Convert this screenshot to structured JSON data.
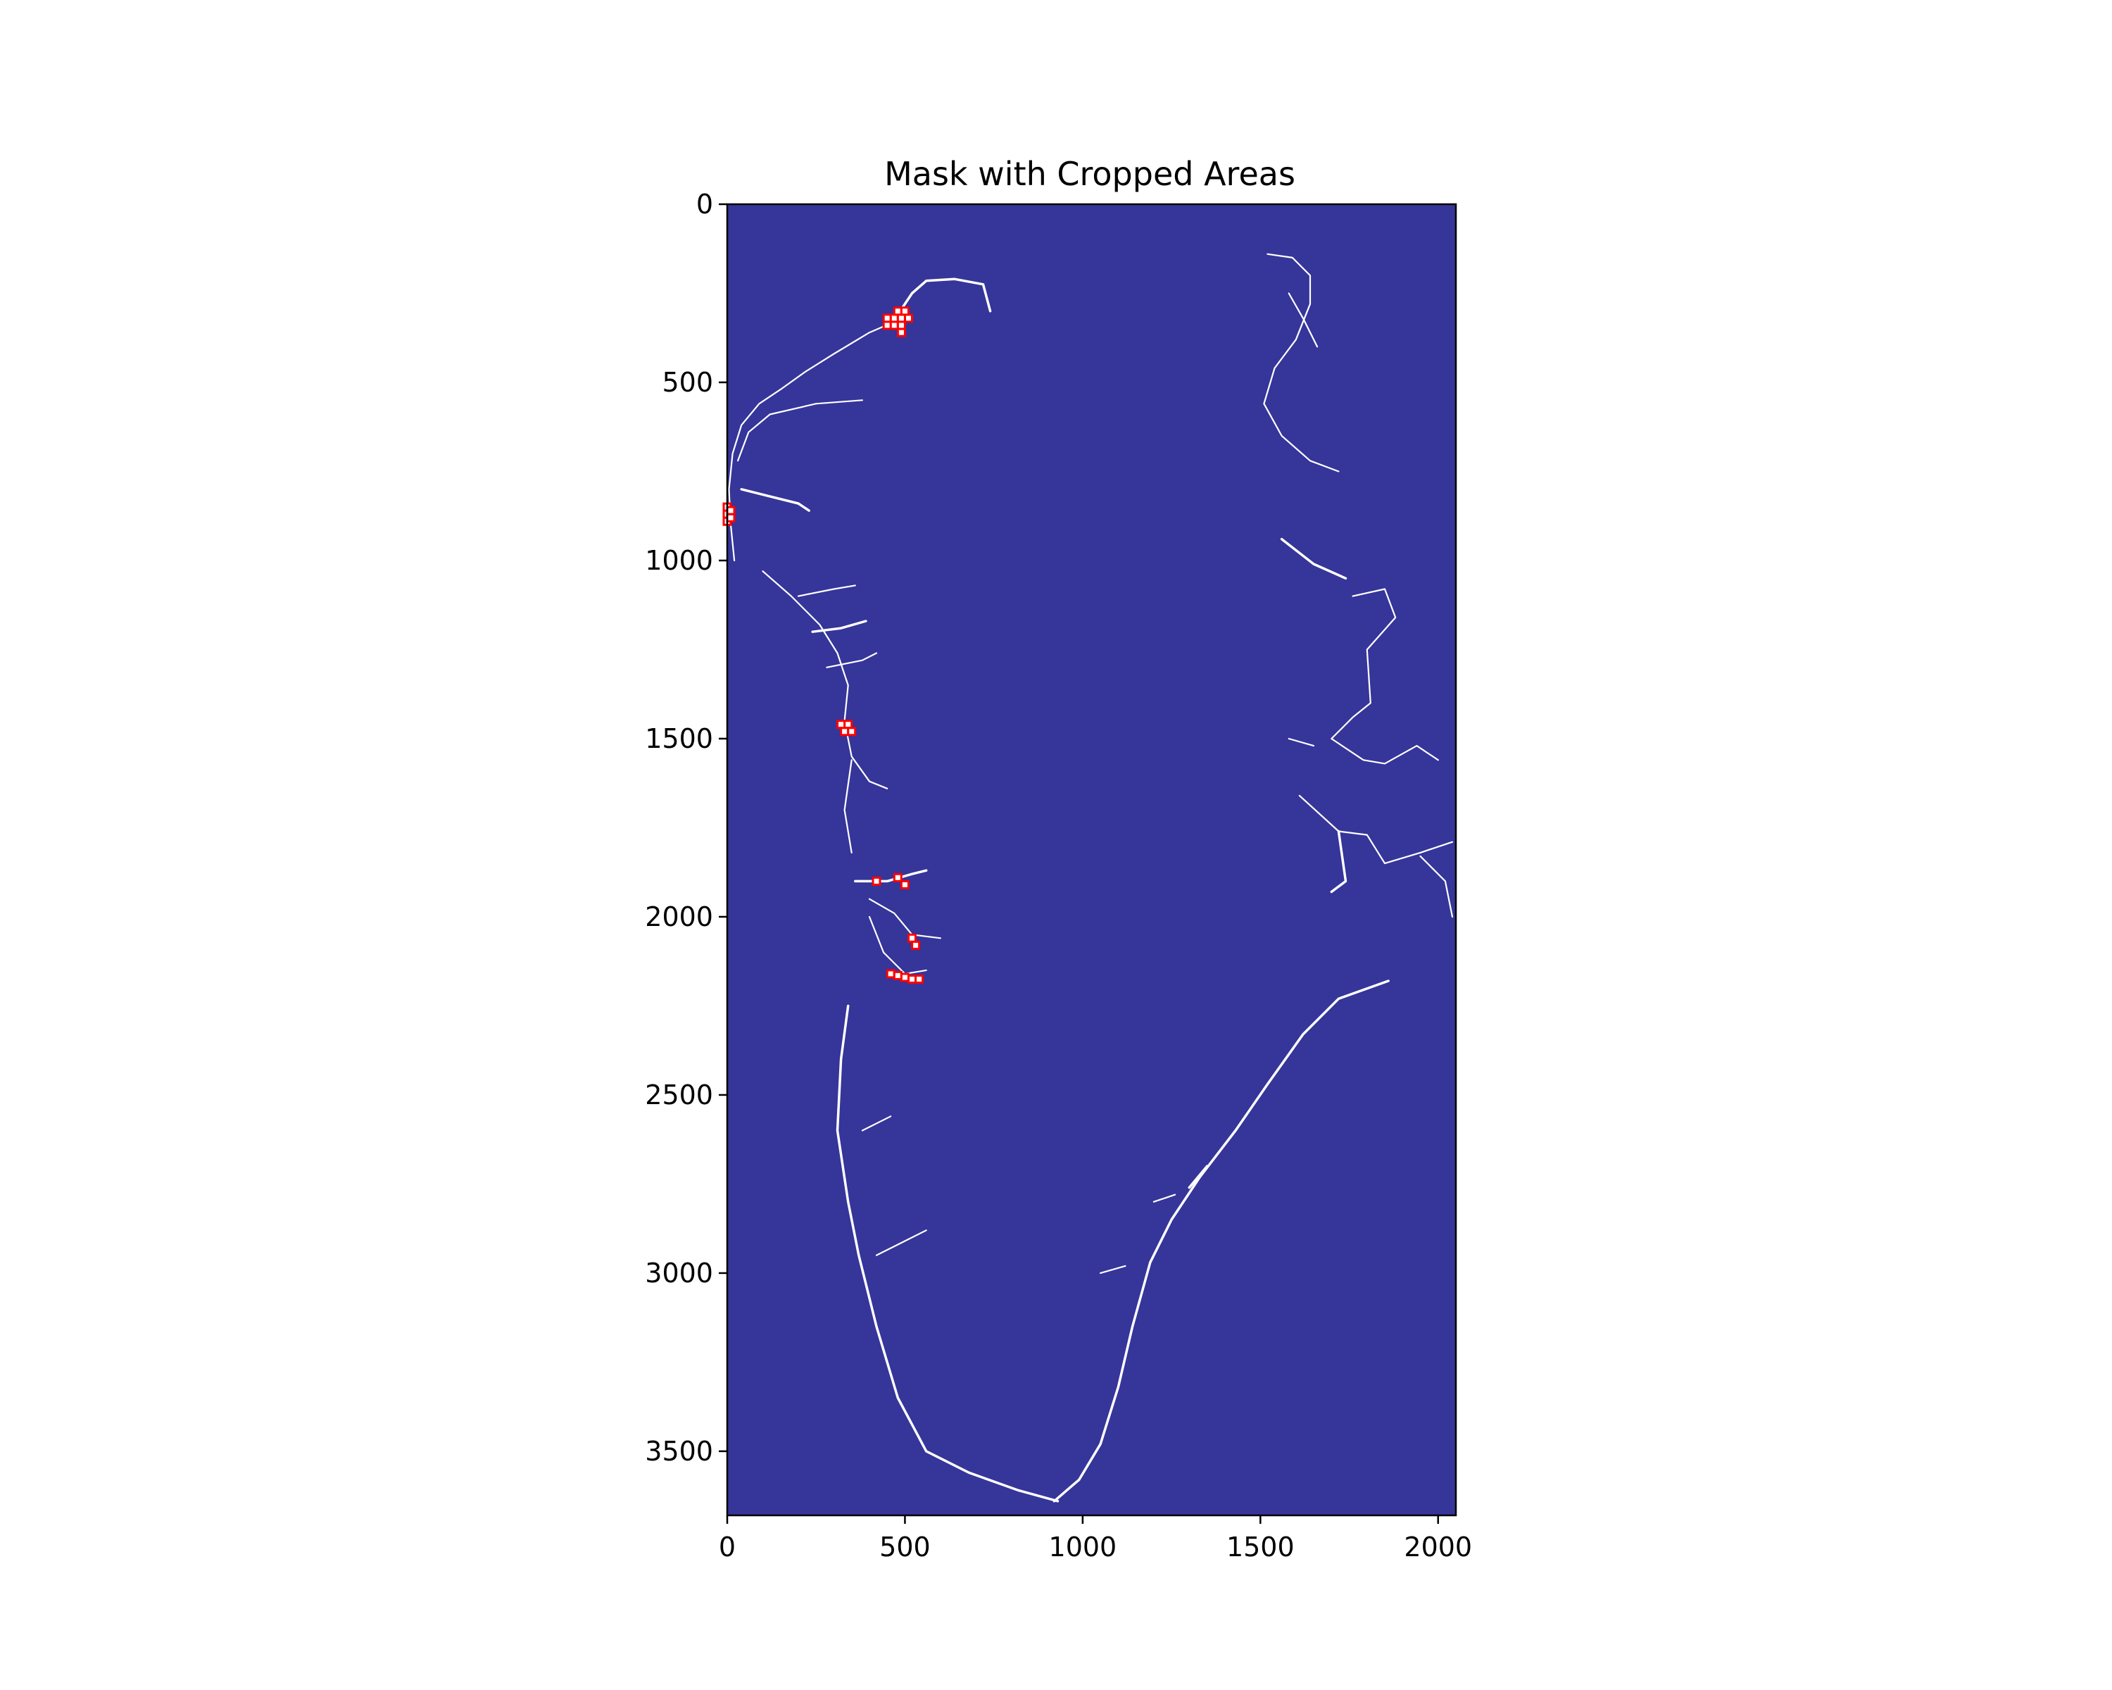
{
  "chart_data": {
    "type": "heatmap",
    "title": "Mask with Cropped Areas",
    "xlabel": "",
    "ylabel": "",
    "xlim": [
      0,
      2050
    ],
    "ylim": [
      3680,
      0
    ],
    "xticks": [
      0,
      500,
      1000,
      1500,
      2000
    ],
    "yticks": [
      0,
      500,
      1000,
      1500,
      2000,
      2500,
      3000,
      3500
    ],
    "grid": false,
    "colors": {
      "background": "#35359a",
      "mask": "#ffffff",
      "crop_box": "#ff0000"
    },
    "mask_paths": [
      [
        [
          460,
          340
        ],
        [
          520,
          250
        ],
        [
          560,
          215
        ],
        [
          640,
          210
        ],
        [
          720,
          225
        ],
        [
          740,
          300
        ]
      ],
      [
        [
          470,
          330
        ],
        [
          400,
          360
        ],
        [
          300,
          420
        ],
        [
          220,
          470
        ],
        [
          150,
          520
        ],
        [
          90,
          560
        ],
        [
          40,
          620
        ],
        [
          15,
          700
        ],
        [
          5,
          800
        ],
        [
          10,
          900
        ],
        [
          20,
          1000
        ]
      ],
      [
        [
          380,
          550
        ],
        [
          250,
          560
        ],
        [
          120,
          590
        ],
        [
          60,
          640
        ],
        [
          30,
          720
        ]
      ],
      [
        [
          40,
          800
        ],
        [
          120,
          820
        ],
        [
          200,
          840
        ],
        [
          230,
          860
        ]
      ],
      [
        [
          100,
          1030
        ],
        [
          180,
          1100
        ],
        [
          260,
          1180
        ],
        [
          310,
          1260
        ],
        [
          340,
          1350
        ],
        [
          330,
          1450
        ],
        [
          350,
          1550
        ],
        [
          400,
          1620
        ],
        [
          450,
          1640
        ]
      ],
      [
        [
          200,
          1100
        ],
        [
          300,
          1080
        ],
        [
          360,
          1070
        ]
      ],
      [
        [
          240,
          1200
        ],
        [
          320,
          1190
        ],
        [
          390,
          1170
        ]
      ],
      [
        [
          280,
          1300
        ],
        [
          380,
          1280
        ],
        [
          420,
          1260
        ]
      ],
      [
        [
          350,
          1560
        ],
        [
          330,
          1700
        ],
        [
          350,
          1820
        ]
      ],
      [
        [
          360,
          1900
        ],
        [
          450,
          1900
        ],
        [
          520,
          1880
        ],
        [
          560,
          1870
        ]
      ],
      [
        [
          400,
          1950
        ],
        [
          470,
          1990
        ],
        [
          520,
          2050
        ],
        [
          600,
          2060
        ]
      ],
      [
        [
          400,
          2000
        ],
        [
          440,
          2100
        ],
        [
          500,
          2160
        ],
        [
          560,
          2150
        ]
      ],
      [
        [
          340,
          2250
        ],
        [
          320,
          2400
        ],
        [
          310,
          2600
        ],
        [
          340,
          2800
        ],
        [
          370,
          2950
        ],
        [
          420,
          3150
        ],
        [
          480,
          3350
        ],
        [
          560,
          3500
        ],
        [
          680,
          3560
        ],
        [
          820,
          3610
        ],
        [
          930,
          3640
        ]
      ],
      [
        [
          420,
          2950
        ],
        [
          500,
          2910
        ],
        [
          560,
          2880
        ]
      ],
      [
        [
          380,
          2600
        ],
        [
          460,
          2560
        ]
      ],
      [
        [
          920,
          3640
        ],
        [
          990,
          3580
        ],
        [
          1050,
          3480
        ],
        [
          1100,
          3320
        ],
        [
          1140,
          3150
        ],
        [
          1190,
          2970
        ],
        [
          1250,
          2850
        ],
        [
          1330,
          2730
        ],
        [
          1430,
          2600
        ],
        [
          1520,
          2470
        ],
        [
          1620,
          2330
        ],
        [
          1720,
          2230
        ],
        [
          1860,
          2180
        ]
      ],
      [
        [
          1050,
          3000
        ],
        [
          1120,
          2980
        ]
      ],
      [
        [
          1200,
          2800
        ],
        [
          1260,
          2780
        ]
      ],
      [
        [
          1350,
          2700
        ],
        [
          1300,
          2760
        ]
      ],
      [
        [
          1520,
          140
        ],
        [
          1590,
          150
        ],
        [
          1640,
          200
        ],
        [
          1640,
          280
        ],
        [
          1600,
          380
        ],
        [
          1540,
          460
        ],
        [
          1510,
          560
        ],
        [
          1560,
          650
        ],
        [
          1640,
          720
        ],
        [
          1720,
          750
        ]
      ],
      [
        [
          1580,
          250
        ],
        [
          1620,
          320
        ],
        [
          1660,
          400
        ]
      ],
      [
        [
          1560,
          940
        ],
        [
          1650,
          1010
        ],
        [
          1740,
          1050
        ]
      ],
      [
        [
          1760,
          1100
        ],
        [
          1850,
          1080
        ],
        [
          1880,
          1160
        ],
        [
          1800,
          1250
        ],
        [
          1810,
          1400
        ],
        [
          1760,
          1440
        ],
        [
          1700,
          1500
        ],
        [
          1790,
          1560
        ],
        [
          1850,
          1570
        ],
        [
          1940,
          1520
        ],
        [
          2000,
          1560
        ]
      ],
      [
        [
          1610,
          1660
        ],
        [
          1720,
          1760
        ],
        [
          1800,
          1770
        ],
        [
          1850,
          1850
        ],
        [
          1950,
          1820
        ],
        [
          2040,
          1790
        ]
      ],
      [
        [
          1720,
          1760
        ],
        [
          1740,
          1900
        ],
        [
          1700,
          1930
        ]
      ],
      [
        [
          1950,
          1830
        ],
        [
          2020,
          1900
        ],
        [
          2040,
          2000
        ]
      ],
      [
        [
          1650,
          1520
        ],
        [
          1580,
          1500
        ]
      ]
    ],
    "crop_boxes": [
      [
        450,
        320
      ],
      [
        470,
        320
      ],
      [
        490,
        320
      ],
      [
        510,
        320
      ],
      [
        450,
        340
      ],
      [
        470,
        340
      ],
      [
        490,
        340
      ],
      [
        480,
        300
      ],
      [
        500,
        300
      ],
      [
        490,
        360
      ],
      [
        0,
        850
      ],
      [
        0,
        870
      ],
      [
        0,
        890
      ],
      [
        10,
        860
      ],
      [
        10,
        880
      ],
      [
        320,
        1460
      ],
      [
        340,
        1460
      ],
      [
        350,
        1480
      ],
      [
        330,
        1480
      ],
      [
        420,
        1900
      ],
      [
        480,
        1890
      ],
      [
        500,
        1910
      ],
      [
        520,
        2060
      ],
      [
        530,
        2080
      ],
      [
        460,
        2160
      ],
      [
        480,
        2165
      ],
      [
        500,
        2170
      ],
      [
        520,
        2175
      ],
      [
        540,
        2175
      ]
    ]
  }
}
